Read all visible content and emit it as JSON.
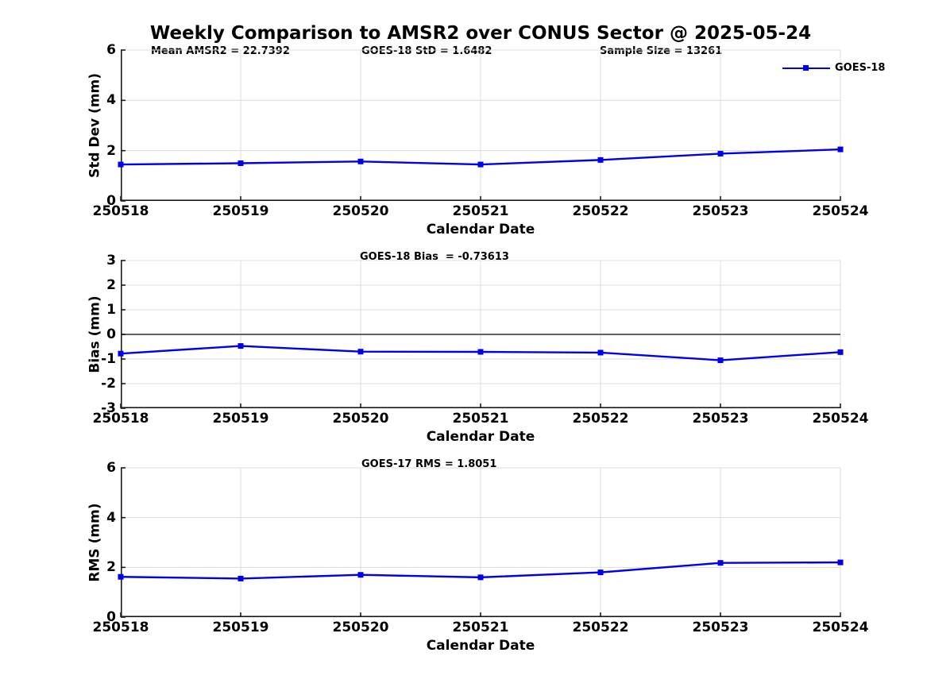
{
  "title": "Weekly Comparison to AMSR2 over CONUS Sector @ 2025-05-24",
  "colors": {
    "line": "#0000EE",
    "grid": "#DCDCDC",
    "axis": "#1A1A1A",
    "zero_line": "#4D4D4D",
    "text": "#000000",
    "background": "#FFFFFF"
  },
  "legend": {
    "label": "GOES-18",
    "location": "upper-right"
  },
  "chart_data": [
    {
      "type": "line",
      "ylabel": "Std Dev (mm)",
      "xlabel": "Calendar Date",
      "categories": [
        "250518",
        "250519",
        "250520",
        "250521",
        "250522",
        "250523",
        "250524"
      ],
      "yticks": [
        0,
        2,
        4,
        6
      ],
      "ylim": [
        0,
        6
      ],
      "grid": true,
      "series": [
        {
          "name": "GOES-18",
          "values": [
            1.45,
            1.5,
            1.57,
            1.45,
            1.63,
            1.88,
            2.05
          ]
        }
      ],
      "annotations": [
        {
          "text": "Mean AMSR2 = 22.7392"
        },
        {
          "text": "GOES-18 StD = 1.6482"
        },
        {
          "text": "Sample Size = 13261"
        }
      ]
    },
    {
      "type": "line",
      "ylabel": "Bias (mm)",
      "xlabel": "Calendar Date",
      "categories": [
        "250518",
        "250519",
        "250520",
        "250521",
        "250522",
        "250523",
        "250524"
      ],
      "yticks": [
        3,
        2,
        1,
        0,
        -1,
        -2,
        -3
      ],
      "ylim": [
        -3,
        3
      ],
      "grid": true,
      "zero_line": 0,
      "series": [
        {
          "name": "GOES-18",
          "values": [
            -0.78,
            -0.47,
            -0.7,
            -0.71,
            -0.74,
            -1.05,
            -0.72
          ]
        }
      ],
      "annotations": [
        {
          "text": "GOES-18 Bias  = -0.73613"
        }
      ]
    },
    {
      "type": "line",
      "ylabel": "RMS (mm)",
      "xlabel": "Calendar Date",
      "categories": [
        "250518",
        "250519",
        "250520",
        "250521",
        "250522",
        "250523",
        "250524"
      ],
      "yticks": [
        0,
        2,
        4,
        6
      ],
      "ylim": [
        0,
        6
      ],
      "grid": true,
      "series": [
        {
          "name": "GOES-18",
          "values": [
            1.62,
            1.55,
            1.7,
            1.6,
            1.8,
            2.18,
            2.2
          ]
        }
      ],
      "annotations": [
        {
          "text": "GOES-17 RMS = 1.8051"
        }
      ]
    }
  ]
}
